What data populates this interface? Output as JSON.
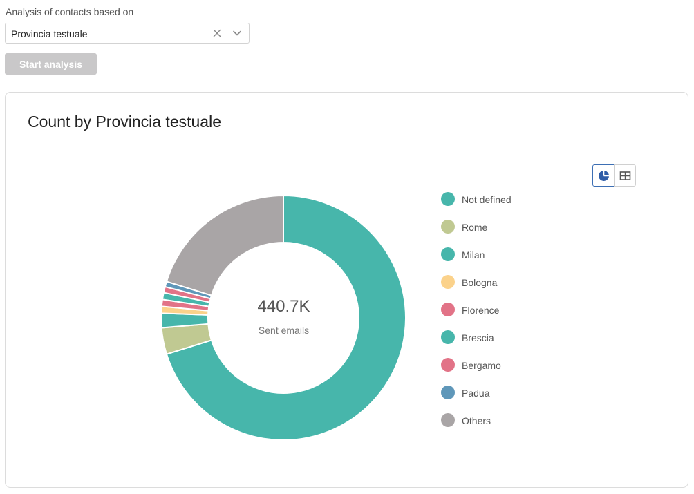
{
  "form": {
    "label": "Analysis of contacts based on",
    "selected_value": "Provincia testuale",
    "start_button": "Start analysis"
  },
  "card": {
    "title": "Count by Provincia testuale",
    "view_modes": [
      "pie-chart-icon",
      "table-icon"
    ],
    "active_view": "pie-chart-icon"
  },
  "chart_data": {
    "type": "pie",
    "variant": "donut",
    "center_value": "440.7K",
    "center_label": "Sent emails",
    "legend_position": "right",
    "slices": [
      {
        "label": "Not defined",
        "value": 70.2,
        "color": "#47b6ab"
      },
      {
        "label": "Rome",
        "value": 3.5,
        "color": "#c0c992"
      },
      {
        "label": "Milan",
        "value": 1.9,
        "color": "#47b6ab"
      },
      {
        "label": "Bologna",
        "value": 0.9,
        "color": "#fbd28b"
      },
      {
        "label": "Florence",
        "value": 0.9,
        "color": "#e27387"
      },
      {
        "label": "Brescia",
        "value": 0.9,
        "color": "#47b6ab"
      },
      {
        "label": "Bergamo",
        "value": 0.8,
        "color": "#e27387"
      },
      {
        "label": "Padua",
        "value": 0.7,
        "color": "#5f97b9"
      },
      {
        "label": "Others",
        "value": 20.2,
        "color": "#a9a5a6"
      }
    ]
  }
}
